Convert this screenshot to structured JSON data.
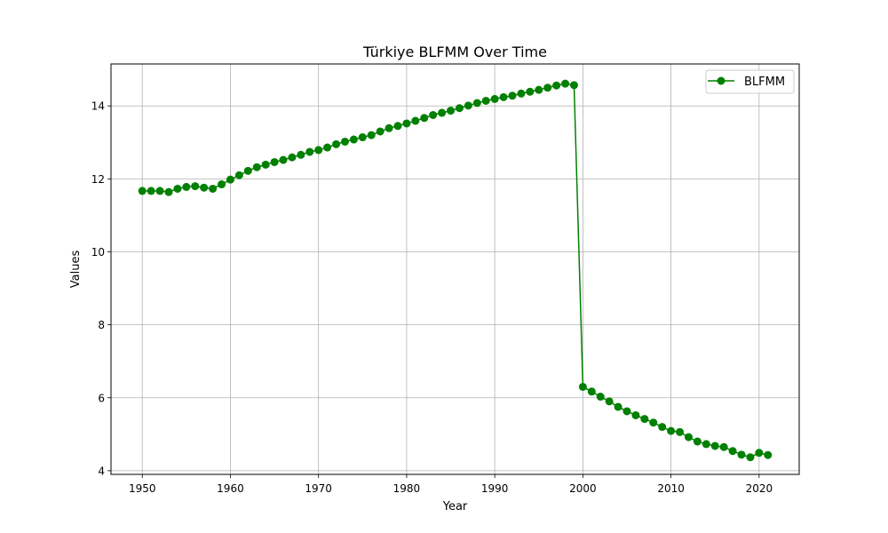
{
  "chart_data": {
    "type": "line",
    "title": "Türkiye BLFMM Over Time",
    "xlabel": "Year",
    "ylabel": "Values",
    "xlim": [
      1946.45,
      2024.55
    ],
    "ylim": [
      3.9,
      15.15
    ],
    "xticks": [
      1950,
      1960,
      1970,
      1980,
      1990,
      2000,
      2010,
      2020
    ],
    "yticks": [
      4,
      6,
      8,
      10,
      12,
      14
    ],
    "grid": true,
    "legend_position": "top-right",
    "series": [
      {
        "name": "BLFMM",
        "color": "#008000",
        "marker": "circle",
        "x": [
          1950,
          1951,
          1952,
          1953,
          1954,
          1955,
          1956,
          1957,
          1958,
          1959,
          1960,
          1961,
          1962,
          1963,
          1964,
          1965,
          1966,
          1967,
          1968,
          1969,
          1970,
          1971,
          1972,
          1973,
          1974,
          1975,
          1976,
          1977,
          1978,
          1979,
          1980,
          1981,
          1982,
          1983,
          1984,
          1985,
          1986,
          1987,
          1988,
          1989,
          1990,
          1991,
          1992,
          1993,
          1994,
          1995,
          1996,
          1997,
          1998,
          1999,
          2000,
          2001,
          2002,
          2003,
          2004,
          2005,
          2006,
          2007,
          2008,
          2009,
          2010,
          2011,
          2012,
          2013,
          2014,
          2015,
          2016,
          2017,
          2018,
          2019,
          2020,
          2021
        ],
        "y": [
          11.67,
          11.67,
          11.67,
          11.64,
          11.73,
          11.78,
          11.8,
          11.76,
          11.73,
          11.85,
          11.98,
          12.1,
          12.22,
          12.32,
          12.39,
          12.46,
          12.52,
          12.59,
          12.66,
          12.74,
          12.79,
          12.86,
          12.95,
          13.02,
          13.08,
          13.14,
          13.2,
          13.3,
          13.39,
          13.45,
          13.52,
          13.59,
          13.67,
          13.75,
          13.81,
          13.87,
          13.94,
          14.01,
          14.08,
          14.14,
          14.19,
          14.24,
          14.28,
          14.34,
          14.39,
          14.44,
          14.5,
          14.56,
          14.61,
          14.57,
          6.3,
          6.17,
          6.03,
          5.9,
          5.75,
          5.63,
          5.52,
          5.42,
          5.32,
          5.2,
          5.09,
          5.06,
          4.92,
          4.8,
          4.73,
          4.68,
          4.65,
          4.54,
          4.44,
          4.37,
          4.49,
          4.43
        ]
      }
    ]
  }
}
